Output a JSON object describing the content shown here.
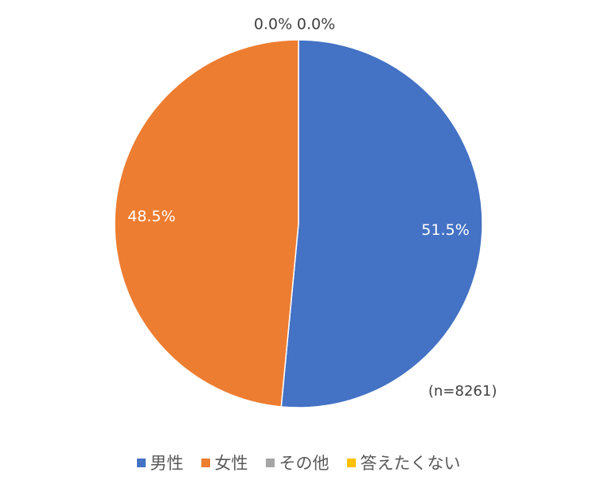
{
  "chart_data": {
    "type": "pie",
    "categories": [
      "男性",
      "女性",
      "その他",
      "答えたくない"
    ],
    "values": [
      51.5,
      48.5,
      0.0,
      0.0
    ],
    "data_labels": [
      "51.5%",
      "48.5%",
      "0.0%",
      "0.0%"
    ],
    "colors": [
      "#4472C4",
      "#ED7D31",
      "#A5A5A5",
      "#FFC000"
    ],
    "legend_position": "bottom",
    "annotation": "(n=8261)"
  }
}
